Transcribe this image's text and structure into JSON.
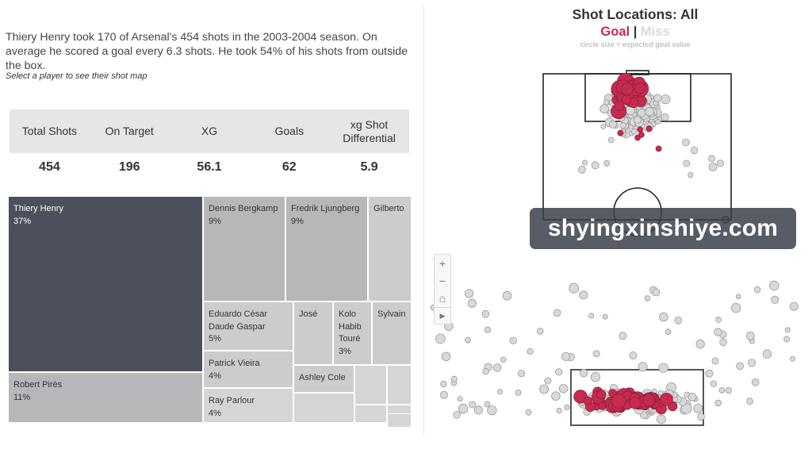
{
  "summary": {
    "text": "Thiery Henry took 170 of Arsenal's 454 shots in the 2003-2004 season. On average he scored a goal every 6.3 shots. He took 54% of his shots from outside the box.",
    "hint": "Select a player to see their shot map"
  },
  "kpis": {
    "headers": [
      "Total Shots",
      "On Target",
      "XG",
      "Goals",
      "xg Shot Differential"
    ],
    "values": [
      "454",
      "196",
      "56.1",
      "62",
      "5.9"
    ]
  },
  "treemap": [
    {
      "name": "Thiery Henry",
      "pct": "37%"
    },
    {
      "name": "Robert Pirès",
      "pct": "11%"
    },
    {
      "name": "Dennis Bergkamp",
      "pct": "9%"
    },
    {
      "name": "Fredrik Ljungberg",
      "pct": "9%"
    },
    {
      "name": "Gilberto",
      "pct": ""
    },
    {
      "name": "Eduardo César Daude Gaspar",
      "pct": "5%"
    },
    {
      "name": "José",
      "pct": ""
    },
    {
      "name": "Kolo Habib Touré",
      "pct": "3%"
    },
    {
      "name": "Sylvain",
      "pct": ""
    },
    {
      "name": "Patrick Vieira",
      "pct": "4%"
    },
    {
      "name": "Ashley Cole",
      "pct": ""
    },
    {
      "name": "Ray Parlour",
      "pct": "4%"
    }
  ],
  "shotmap": {
    "title": "Shot Locations: All",
    "goal_label": "Goal",
    "separator": "|",
    "miss_label": "Miss",
    "note": "circle size = expected goal value",
    "colors": {
      "goal": "#c62b4e",
      "miss": "#d9d9d9",
      "miss_stroke": "#9a9a9a",
      "pitch_line": "#222222"
    }
  },
  "watermark": "shyingxinshiye.com",
  "map_controls": {
    "zoom_in": "+",
    "zoom_out": "−",
    "home": "⌂",
    "play": "▶"
  }
}
